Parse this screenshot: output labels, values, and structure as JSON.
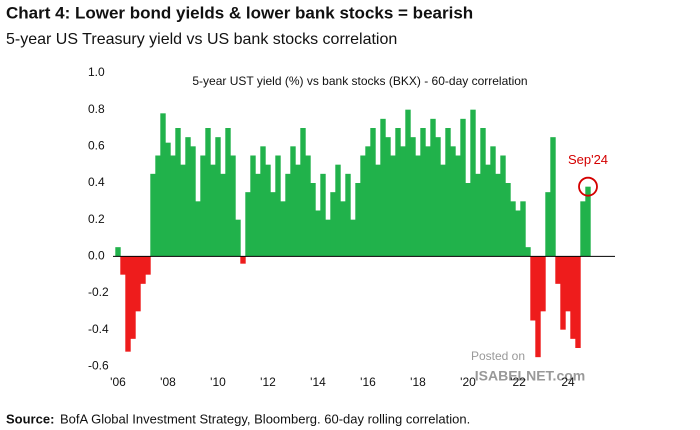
{
  "chart_data": {
    "type": "bar",
    "title": "Chart 4: Lower bond yields & lower bank stocks = bearish",
    "subtitle": "5-year US Treasury yield vs US bank stocks correlation",
    "series_label": "5-year UST yield (%) vs bank stocks (BKX) - 60-day correlation",
    "annotation": "Sep'24",
    "annotation_color": "#d40000",
    "positive_color": "#21b24b",
    "negative_color": "#ee1c1c",
    "source_label": "Source:",
    "source": "BofA Global Investment Strategy, Bloomberg. 60-day rolling correlation.",
    "watermark": [
      "Posted on",
      "ISABELNET.com"
    ],
    "x": [
      2006.0,
      2006.2,
      2006.4,
      2006.6,
      2006.8,
      2007.0,
      2007.2,
      2007.4,
      2007.6,
      2007.8,
      2008.0,
      2008.2,
      2008.4,
      2008.6,
      2008.8,
      2009.0,
      2009.2,
      2009.4,
      2009.6,
      2009.8,
      2010.0,
      2010.2,
      2010.4,
      2010.6,
      2010.8,
      2011.0,
      2011.2,
      2011.4,
      2011.6,
      2011.8,
      2012.0,
      2012.2,
      2012.4,
      2012.6,
      2012.8,
      2013.0,
      2013.2,
      2013.4,
      2013.6,
      2013.8,
      2014.0,
      2014.2,
      2014.4,
      2014.6,
      2014.8,
      2015.0,
      2015.2,
      2015.4,
      2015.6,
      2015.8,
      2016.0,
      2016.2,
      2016.4,
      2016.6,
      2016.8,
      2017.0,
      2017.2,
      2017.4,
      2017.6,
      2017.8,
      2018.0,
      2018.2,
      2018.4,
      2018.6,
      2018.8,
      2019.0,
      2019.2,
      2019.4,
      2019.6,
      2019.8,
      2020.0,
      2020.2,
      2020.4,
      2020.6,
      2020.8,
      2021.0,
      2021.2,
      2021.4,
      2021.6,
      2021.8,
      2022.0,
      2022.2,
      2022.4,
      2022.6,
      2022.8,
      2023.0,
      2023.2,
      2023.4,
      2023.6,
      2023.8,
      2024.0,
      2024.2,
      2024.4,
      2024.6,
      2024.8
    ],
    "values": [
      0.05,
      -0.1,
      -0.52,
      -0.45,
      -0.3,
      -0.15,
      -0.1,
      0.45,
      0.55,
      0.78,
      0.62,
      0.55,
      0.7,
      0.5,
      0.65,
      0.6,
      0.3,
      0.55,
      0.7,
      0.5,
      0.65,
      0.45,
      0.7,
      0.55,
      0.2,
      -0.04,
      0.35,
      0.55,
      0.45,
      0.6,
      0.5,
      0.35,
      0.55,
      0.3,
      0.45,
      0.6,
      0.5,
      0.7,
      0.55,
      0.4,
      0.25,
      0.45,
      0.2,
      0.35,
      0.5,
      0.3,
      0.45,
      0.2,
      0.4,
      0.55,
      0.6,
      0.7,
      0.5,
      0.75,
      0.65,
      0.55,
      0.7,
      0.6,
      0.8,
      0.65,
      0.55,
      0.7,
      0.6,
      0.75,
      0.65,
      0.5,
      0.7,
      0.6,
      0.55,
      0.75,
      0.4,
      0.8,
      0.45,
      0.7,
      0.5,
      0.6,
      0.45,
      0.55,
      0.4,
      0.3,
      0.25,
      0.3,
      0.05,
      -0.35,
      -0.55,
      -0.3,
      0.35,
      0.65,
      -0.15,
      -0.4,
      -0.3,
      -0.45,
      -0.5,
      0.3,
      0.38
    ],
    "xlim": [
      2005.8,
      2025.88
    ],
    "ylim": [
      -0.62,
      1.0
    ],
    "xticks": [
      {
        "value": 2006,
        "label": "'06"
      },
      {
        "value": 2008,
        "label": "'08"
      },
      {
        "value": 2010,
        "label": "'10"
      },
      {
        "value": 2012,
        "label": "'12"
      },
      {
        "value": 2014,
        "label": "'14"
      },
      {
        "value": 2016,
        "label": "'16"
      },
      {
        "value": 2018,
        "label": "'18"
      },
      {
        "value": 2020,
        "label": "'20"
      },
      {
        "value": 2022,
        "label": "'22"
      },
      {
        "value": 2024,
        "label": "24"
      }
    ],
    "yticks": [
      {
        "value": 1,
        "label": "1.0"
      },
      {
        "value": 0.8,
        "label": "0.8"
      },
      {
        "value": 0.6,
        "label": "0.6"
      },
      {
        "value": 0.4,
        "label": "0.4"
      },
      {
        "value": 0.2,
        "label": "0.2"
      },
      {
        "value": 0,
        "label": "0.0"
      },
      {
        "value": -0.2,
        "label": "-0.2"
      },
      {
        "value": -0.4,
        "label": "-0.4"
      },
      {
        "value": -0.6,
        "label": "-0.6"
      }
    ]
  }
}
